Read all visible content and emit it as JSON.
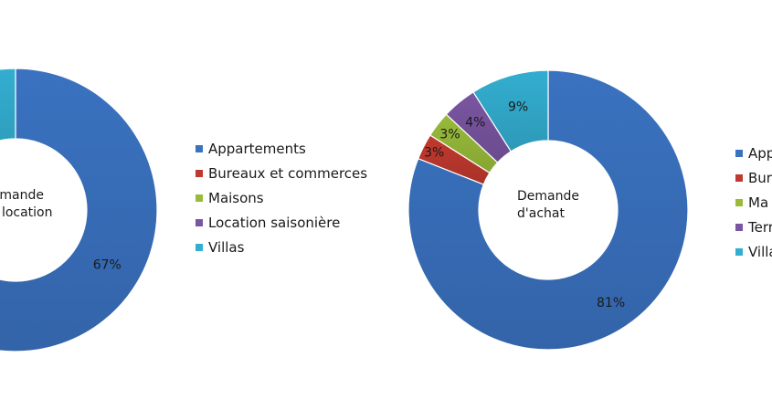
{
  "chart_data": [
    {
      "type": "pie",
      "center_text": "Demande de location",
      "center_lines": [
        "Demande",
        "de location"
      ],
      "categories": [
        "Appartements",
        "Bureaux et commerces",
        "Maisons",
        "Location saisonière",
        "Villas"
      ],
      "values": [
        67,
        null,
        null,
        null,
        null
      ],
      "data_labels": [
        "67%",
        "",
        "",
        "",
        ""
      ],
      "colors": [
        "#3a72c0",
        "#c0392f",
        "#98bb3a",
        "#7a55a1",
        "#33aed0"
      ],
      "legend": "right"
    },
    {
      "type": "pie",
      "center_text": "Demande d'achat",
      "center_lines": [
        "Demande",
        "d'achat"
      ],
      "categories": [
        "Appartements",
        "Bureaux et commerces",
        "Maisons",
        "Terrains",
        "Villas"
      ],
      "values": [
        81,
        3,
        3,
        4,
        9
      ],
      "data_labels": [
        "81%",
        "3%",
        "3%",
        "4%",
        "9%"
      ],
      "colors": [
        "#3a72c0",
        "#c0392f",
        "#98bb3a",
        "#7a55a1",
        "#33aed0"
      ],
      "legend": "right",
      "legend_visible_text": [
        "App",
        "Bure",
        "Ma",
        "Terr",
        "Villa"
      ]
    }
  ]
}
